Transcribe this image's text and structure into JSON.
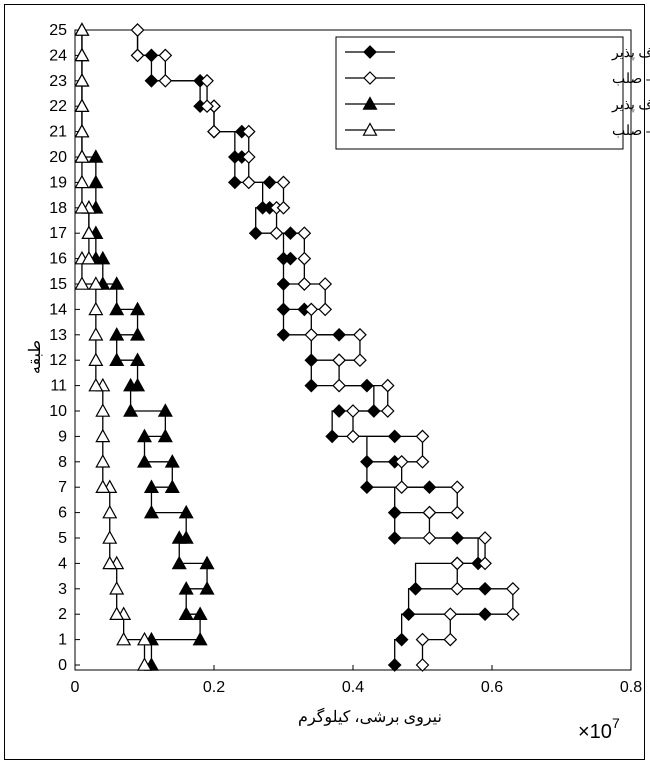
{
  "chart_data": {
    "type": "line",
    "xlabel": "نیروی برشی، کیلوگرم",
    "ylabel": "طبقه",
    "x_multiplier": "×10",
    "x_multiplier_exp": "7",
    "xlim": [
      0,
      0.8
    ],
    "ylim": [
      0,
      25
    ],
    "xticks": [
      0,
      0.2,
      0.4,
      0.6,
      0.8
    ],
    "xtick_labels": [
      "0",
      "0.2",
      "0.4",
      "0.6",
      "0.8"
    ],
    "yticks": [
      0,
      1,
      2,
      3,
      4,
      5,
      6,
      7,
      8,
      9,
      10,
      11,
      12,
      13,
      14,
      15,
      16,
      17,
      18,
      19,
      20,
      21,
      22,
      23,
      24,
      25
    ],
    "grid": false,
    "legend_position": "top-right",
    "series": [
      {
        "name": "برش دیوارها- انعطاف پذیر",
        "marker": "filled-diamond",
        "values": [
          [
            0.46,
            0.46
          ],
          [
            0.47,
            0.47
          ],
          [
            0.59,
            0.48
          ],
          [
            0.59,
            0.49
          ],
          [
            0.55,
            0.58
          ],
          [
            0.55,
            0.46
          ],
          [
            0.51,
            0.46
          ],
          [
            0.51,
            0.42
          ],
          [
            0.46,
            0.42
          ],
          [
            0.46,
            0.37
          ],
          [
            0.38,
            0.43
          ],
          [
            0.42,
            0.34
          ],
          [
            0.38,
            0.34
          ],
          [
            0.38,
            0.3
          ],
          [
            0.33,
            0.3
          ],
          [
            0.33,
            0.3
          ],
          [
            0.31,
            0.3
          ],
          [
            0.31,
            0.26
          ],
          [
            0.28,
            0.27
          ],
          [
            0.28,
            0.23
          ],
          [
            0.24,
            0.23
          ],
          [
            0.24,
            0.2
          ],
          [
            0.2,
            0.18
          ],
          [
            0.18,
            0.11
          ],
          [
            0.11,
            0.09
          ],
          [
            0.09,
            0.09
          ]
        ]
      },
      {
        "name": "برش دیوارها- صلب",
        "marker": "open-diamond",
        "values": [
          [
            0.5,
            0.5
          ],
          [
            0.5,
            0.54
          ],
          [
            0.54,
            0.63
          ],
          [
            0.63,
            0.55
          ],
          [
            0.55,
            0.59
          ],
          [
            0.59,
            0.51
          ],
          [
            0.51,
            0.55
          ],
          [
            0.55,
            0.47
          ],
          [
            0.47,
            0.5
          ],
          [
            0.5,
            0.4
          ],
          [
            0.4,
            0.45
          ],
          [
            0.45,
            0.38
          ],
          [
            0.38,
            0.41
          ],
          [
            0.41,
            0.34
          ],
          [
            0.34,
            0.36
          ],
          [
            0.36,
            0.33
          ],
          [
            0.33,
            0.33
          ],
          [
            0.33,
            0.29
          ],
          [
            0.29,
            0.3
          ],
          [
            0.3,
            0.25
          ],
          [
            0.25,
            0.25
          ],
          [
            0.25,
            0.2
          ],
          [
            0.2,
            0.19
          ],
          [
            0.19,
            0.13
          ],
          [
            0.13,
            0.09
          ],
          [
            0.09,
            0.09
          ]
        ]
      },
      {
        "name": "برش ستونها- انعطاف پذیر",
        "marker": "filled-triangle",
        "values": [
          [
            0.11,
            0.11
          ],
          [
            0.11,
            0.18
          ],
          [
            0.18,
            0.16
          ],
          [
            0.16,
            0.19
          ],
          [
            0.19,
            0.15
          ],
          [
            0.15,
            0.16
          ],
          [
            0.16,
            0.11
          ],
          [
            0.11,
            0.14
          ],
          [
            0.14,
            0.1
          ],
          [
            0.1,
            0.13
          ],
          [
            0.13,
            0.08
          ],
          [
            0.08,
            0.09
          ],
          [
            0.09,
            0.06
          ],
          [
            0.06,
            0.09
          ],
          [
            0.09,
            0.06
          ],
          [
            0.06,
            0.04
          ],
          [
            0.04,
            0.03
          ],
          [
            0.03,
            0.02
          ],
          [
            0.02,
            0.03
          ],
          [
            0.03,
            0.03
          ],
          [
            0.03,
            0.01
          ],
          [
            0.01,
            0.01
          ],
          [
            0.01,
            0.01
          ],
          [
            0.01,
            0.01
          ],
          [
            0.01,
            0.01
          ],
          [
            0.01,
            0.01
          ]
        ]
      },
      {
        "name": "برش ستونها- صلب",
        "marker": "open-triangle",
        "values": [
          [
            0.1,
            0.1
          ],
          [
            0.1,
            0.07
          ],
          [
            0.07,
            0.06
          ],
          [
            0.06,
            0.06
          ],
          [
            0.06,
            0.05
          ],
          [
            0.05,
            0.05
          ],
          [
            0.05,
            0.05
          ],
          [
            0.05,
            0.04
          ],
          [
            0.04,
            0.04
          ],
          [
            0.04,
            0.04
          ],
          [
            0.04,
            0.04
          ],
          [
            0.04,
            0.03
          ],
          [
            0.03,
            0.03
          ],
          [
            0.03,
            0.03
          ],
          [
            0.03,
            0.03
          ],
          [
            0.03,
            0.01
          ],
          [
            0.01,
            0.02
          ],
          [
            0.02,
            0.02
          ],
          [
            0.02,
            0.01
          ],
          [
            0.01,
            0.01
          ],
          [
            0.01,
            0.01
          ],
          [
            0.01,
            0.01
          ],
          [
            0.01,
            0.01
          ],
          [
            0.01,
            0.01
          ],
          [
            0.01,
            0.01
          ],
          [
            0.01,
            0.01
          ]
        ]
      }
    ]
  }
}
